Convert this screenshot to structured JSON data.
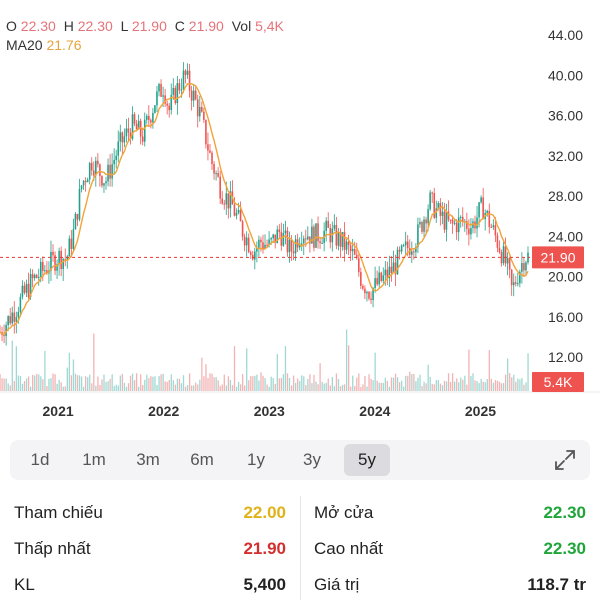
{
  "header": {
    "ohlc": [
      {
        "k": "O",
        "v": "22.30"
      },
      {
        "k": "H",
        "v": "22.30"
      },
      {
        "k": "L",
        "v": "21.90"
      },
      {
        "k": "C",
        "v": "21.90"
      },
      {
        "k": "Vol",
        "v": "5,4K"
      }
    ],
    "ma_label": "MA20",
    "ma_value": "21.76"
  },
  "chart_data": {
    "type": "candlestick",
    "y_ticks": [
      "44.00",
      "40.00",
      "36.00",
      "32.00",
      "28.00",
      "24.00",
      "20.00",
      "16.00",
      "12.00"
    ],
    "ylim": [
      12,
      44
    ],
    "x_ticks": [
      {
        "label": "2021",
        "year": 2021
      },
      {
        "label": "2022",
        "year": 2022
      },
      {
        "label": "2023",
        "year": 2023
      },
      {
        "label": "2024",
        "year": 2024
      },
      {
        "label": "2025",
        "year": 2025
      }
    ],
    "x_range_years": [
      2020.45,
      2025.45
    ],
    "price_path": [
      [
        2020.45,
        14.5
      ],
      [
        2020.6,
        16.8
      ],
      [
        2020.75,
        19.5
      ],
      [
        2020.9,
        21.0
      ],
      [
        2021.0,
        22.0
      ],
      [
        2021.08,
        21.8
      ],
      [
        2021.15,
        24.5
      ],
      [
        2021.22,
        29.0
      ],
      [
        2021.32,
        31.5
      ],
      [
        2021.45,
        29.5
      ],
      [
        2021.58,
        33.0
      ],
      [
        2021.7,
        35.0
      ],
      [
        2021.8,
        34.0
      ],
      [
        2021.92,
        37.5
      ],
      [
        2022.0,
        39.0
      ],
      [
        2022.05,
        36.5
      ],
      [
        2022.12,
        38.5
      ],
      [
        2022.2,
        40.0
      ],
      [
        2022.28,
        38.0
      ],
      [
        2022.35,
        36.0
      ],
      [
        2022.45,
        31.5
      ],
      [
        2022.55,
        28.5
      ],
      [
        2022.65,
        27.0
      ],
      [
        2022.75,
        24.5
      ],
      [
        2022.85,
        22.5
      ],
      [
        2022.92,
        23.5
      ],
      [
        2023.0,
        23.0
      ],
      [
        2023.1,
        24.5
      ],
      [
        2023.2,
        22.5
      ],
      [
        2023.3,
        24.5
      ],
      [
        2023.42,
        24.0
      ],
      [
        2023.55,
        24.5
      ],
      [
        2023.68,
        23.5
      ],
      [
        2023.8,
        22.0
      ],
      [
        2023.88,
        19.5
      ],
      [
        2023.95,
        18.5
      ],
      [
        2024.05,
        19.5
      ],
      [
        2024.15,
        20.5
      ],
      [
        2024.28,
        22.5
      ],
      [
        2024.4,
        24.0
      ],
      [
        2024.52,
        27.5
      ],
      [
        2024.62,
        26.0
      ],
      [
        2024.72,
        25.0
      ],
      [
        2024.82,
        25.5
      ],
      [
        2024.92,
        25.0
      ],
      [
        2025.02,
        27.0
      ],
      [
        2025.1,
        25.0
      ],
      [
        2025.18,
        23.0
      ],
      [
        2025.25,
        21.0
      ],
      [
        2025.3,
        18.5
      ],
      [
        2025.36,
        20.5
      ],
      [
        2025.42,
        22.0
      ]
    ],
    "last_price": 21.9,
    "last_price_label": "21.90",
    "volume_label": "5.4K",
    "grid": false,
    "colors": {
      "up": "#22a08a",
      "down": "#ef5350",
      "ma": "#f2a33a",
      "price_line": "#e53935",
      "volume": "#ef9a9a"
    }
  },
  "timeframes": {
    "items": [
      "1d",
      "1m",
      "3m",
      "6m",
      "1y",
      "3y",
      "5y"
    ],
    "active": "5y"
  },
  "stats": {
    "tham_chieu": {
      "label": "Tham chiếu",
      "value": "22.00",
      "color": "#e0b21a"
    },
    "mo_cua": {
      "label": "Mở cửa",
      "value": "22.30",
      "color": "#1fa53a"
    },
    "thap_nhat": {
      "label": "Thấp nhất",
      "value": "21.90",
      "color": "#d32f2f"
    },
    "cao_nhat": {
      "label": "Cao nhất",
      "value": "22.30",
      "color": "#1fa53a"
    },
    "kl": {
      "label": "KL",
      "value": "5,400",
      "color": "#222222"
    },
    "gia_tri": {
      "label": "Giá trị",
      "value": "118.7 tr",
      "color": "#222222"
    }
  }
}
